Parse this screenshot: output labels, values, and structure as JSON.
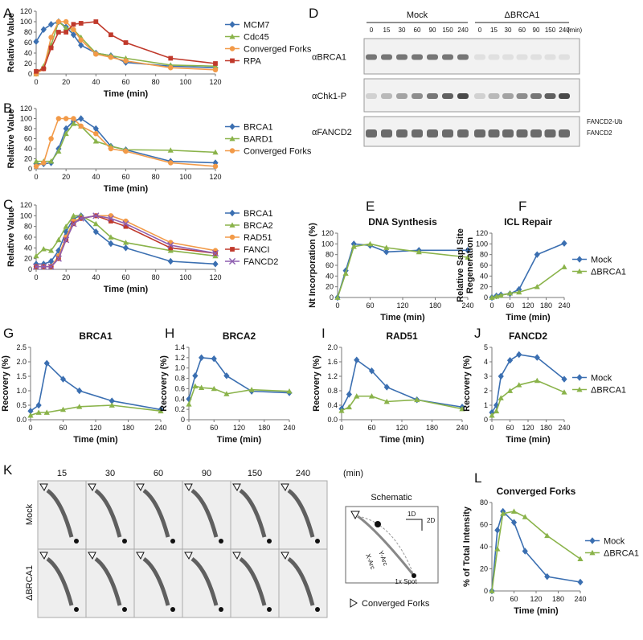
{
  "panel_labels": [
    "A",
    "B",
    "C",
    "D",
    "E",
    "F",
    "G",
    "H",
    "I",
    "J",
    "K",
    "L"
  ],
  "blots": {
    "conditions": [
      "Mock",
      "ΔBRCA1"
    ],
    "lanes": [
      "0",
      "15",
      "30",
      "60",
      "90",
      "150",
      "240"
    ],
    "unit": "(min)",
    "antibodies": [
      "αBRCA1",
      "αChk1-P",
      "αFANCD2"
    ],
    "band_labels": [
      "FANCD2-Ub",
      "FANCD2"
    ]
  },
  "gels": {
    "times": [
      "15",
      "30",
      "60",
      "90",
      "150",
      "240"
    ],
    "unit": "(min)",
    "rows": [
      "Mock",
      "ΔBRCA1"
    ],
    "schematic": {
      "title": "Schematic",
      "axis_1d": "1D",
      "axis_2d": "2D",
      "arc_labels": [
        "X-Arc",
        "Y-Arc"
      ],
      "spot": "1x Spot"
    },
    "legend": "Converged Forks"
  },
  "chart_data": [
    {
      "type": "line",
      "x_label": "Time (min)",
      "y_label": "Relative Value",
      "x": [
        0,
        5,
        10,
        15,
        20,
        25,
        30,
        40,
        50,
        60,
        90,
        120
      ],
      "xlim": [
        0,
        120
      ],
      "xticks": [
        0,
        20,
        40,
        60,
        80,
        100,
        120
      ],
      "ylim": [
        0,
        120
      ],
      "yticks": [
        0,
        20,
        40,
        60,
        80,
        100,
        120
      ],
      "legend": "right",
      "series": [
        {
          "name": "MCM7",
          "color": "#3b6fb1",
          "marker": "diamond",
          "values": [
            62,
            85,
            95,
            100,
            90,
            75,
            55,
            40,
            35,
            22,
            15,
            12
          ]
        },
        {
          "name": "Cdc45",
          "color": "#8ab34a",
          "marker": "triangle",
          "values": [
            0,
            15,
            55,
            100,
            88,
            85,
            70,
            40,
            35,
            30,
            17,
            15
          ]
        },
        {
          "name": "Converged Forks",
          "color": "#f29a48",
          "marker": "circle",
          "values": [
            0,
            10,
            70,
            100,
            100,
            85,
            65,
            38,
            32,
            25,
            12,
            8
          ]
        },
        {
          "name": "RPA",
          "color": "#c0392b",
          "marker": "square",
          "values": [
            5,
            10,
            50,
            80,
            80,
            95,
            97,
            100,
            75,
            60,
            30,
            20
          ]
        }
      ]
    },
    {
      "type": "line",
      "x_label": "Time (min)",
      "y_label": "Relative Value",
      "x": [
        0,
        5,
        10,
        15,
        20,
        25,
        30,
        40,
        50,
        60,
        90,
        120
      ],
      "xlim": [
        0,
        120
      ],
      "xticks": [
        0,
        20,
        40,
        60,
        80,
        100,
        120
      ],
      "ylim": [
        0,
        120
      ],
      "yticks": [
        0,
        20,
        40,
        60,
        80,
        100,
        120
      ],
      "legend": "right",
      "series": [
        {
          "name": "BRCA1",
          "color": "#3b6fb1",
          "marker": "diamond",
          "values": [
            10,
            10,
            12,
            40,
            80,
            95,
            100,
            80,
            45,
            38,
            15,
            12
          ]
        },
        {
          "name": "BARD1",
          "color": "#8ab34a",
          "marker": "triangle",
          "values": [
            15,
            15,
            15,
            35,
            70,
            90,
            85,
            55,
            45,
            38,
            37,
            33
          ]
        },
        {
          "name": "Converged Forks",
          "color": "#f29a48",
          "marker": "circle",
          "values": [
            5,
            12,
            60,
            100,
            100,
            100,
            85,
            70,
            40,
            35,
            12,
            5
          ]
        }
      ]
    },
    {
      "type": "line",
      "x_label": "Time (min)",
      "y_label": "Relative Value",
      "x": [
        0,
        5,
        10,
        15,
        20,
        25,
        30,
        40,
        50,
        60,
        90,
        120
      ],
      "xlim": [
        0,
        120
      ],
      "xticks": [
        0,
        20,
        40,
        60,
        80,
        100,
        120
      ],
      "ylim": [
        0,
        120
      ],
      "yticks": [
        0,
        20,
        40,
        60,
        80,
        100,
        120
      ],
      "legend": "right",
      "series": [
        {
          "name": "BRCA1",
          "color": "#3b6fb1",
          "marker": "diamond",
          "values": [
            10,
            10,
            15,
            35,
            70,
            95,
            100,
            70,
            48,
            40,
            15,
            10
          ]
        },
        {
          "name": "BRCA2",
          "color": "#8ab34a",
          "marker": "triangle",
          "values": [
            25,
            38,
            35,
            55,
            80,
            100,
            100,
            85,
            60,
            50,
            35,
            25
          ]
        },
        {
          "name": "RAD51",
          "color": "#f29a48",
          "marker": "circle",
          "values": [
            5,
            5,
            5,
            25,
            60,
            90,
            95,
            100,
            100,
            90,
            50,
            35
          ]
        },
        {
          "name": "FANCI",
          "color": "#c0392b",
          "marker": "square",
          "values": [
            5,
            5,
            5,
            20,
            55,
            85,
            95,
            100,
            90,
            80,
            40,
            30
          ]
        },
        {
          "name": "FANCD2",
          "color": "#8e5fb0",
          "marker": "x",
          "values": [
            5,
            5,
            5,
            20,
            55,
            85,
            95,
            100,
            95,
            85,
            45,
            30
          ]
        }
      ]
    },
    {
      "type": "line",
      "title": "DNA Synthesis",
      "x_label": "Time (min)",
      "y_label": "Nt Incorporation (%)",
      "x": [
        0,
        15,
        30,
        60,
        90,
        150,
        240
      ],
      "xlim": [
        0,
        240
      ],
      "xticks": [
        0,
        60,
        120,
        180,
        240
      ],
      "ylim": [
        0,
        120
      ],
      "yticks": [
        0,
        20,
        40,
        60,
        80,
        100,
        120
      ],
      "series": [
        {
          "name": "Mock",
          "color": "#3b6fb1",
          "marker": "diamond",
          "values": [
            0,
            50,
            100,
            97,
            85,
            88,
            88
          ]
        },
        {
          "name": "ΔBRCA1",
          "color": "#8ab34a",
          "marker": "triangle",
          "values": [
            0,
            45,
            95,
            100,
            93,
            85,
            75
          ]
        }
      ]
    },
    {
      "type": "line",
      "title": "ICL Repair",
      "x_label": "Time (min)",
      "y_label": "Relative SapI Site Regeneration",
      "x": [
        0,
        15,
        30,
        60,
        90,
        150,
        240
      ],
      "xlim": [
        0,
        240
      ],
      "xticks": [
        0,
        60,
        120,
        180,
        240
      ],
      "ylim": [
        0,
        120
      ],
      "yticks": [
        0,
        20,
        40,
        60,
        80,
        100,
        120
      ],
      "legend": "right",
      "series": [
        {
          "name": "Mock",
          "color": "#3b6fb1",
          "marker": "diamond",
          "values": [
            0,
            3,
            5,
            7,
            15,
            80,
            101
          ]
        },
        {
          "name": "ΔBRCA1",
          "color": "#8ab34a",
          "marker": "triangle",
          "values": [
            0,
            2,
            4,
            8,
            10,
            20,
            57
          ]
        }
      ]
    },
    {
      "type": "line",
      "title": "BRCA1",
      "x_label": "Time (min)",
      "y_label": "Recovery (%)",
      "x": [
        0,
        15,
        30,
        60,
        90,
        150,
        240
      ],
      "xlim": [
        0,
        240
      ],
      "xticks": [
        0,
        60,
        120,
        180,
        240
      ],
      "ylim": [
        0,
        2.5
      ],
      "yticks": [
        {
          "value": 0,
          "label": "0.0"
        },
        0.5,
        {
          "value": 1,
          "label": "1.0"
        },
        1.5,
        {
          "value": 2,
          "label": "2.0"
        },
        2.5
      ],
      "series": [
        {
          "name": "Mock",
          "color": "#3b6fb1",
          "marker": "diamond",
          "values": [
            0.3,
            0.5,
            1.95,
            1.4,
            1.0,
            0.65,
            0.35
          ]
        },
        {
          "name": "ΔBRCA1",
          "color": "#8ab34a",
          "marker": "triangle",
          "values": [
            0.15,
            0.25,
            0.25,
            0.35,
            0.45,
            0.5,
            0.3
          ]
        }
      ]
    },
    {
      "type": "line",
      "title": "BRCA2",
      "x_label": "Time (min)",
      "y_label": "Recovery (%)",
      "x": [
        0,
        15,
        30,
        60,
        90,
        150,
        240
      ],
      "xlim": [
        0,
        240
      ],
      "xticks": [
        0,
        60,
        120,
        180,
        240
      ],
      "ylim": [
        0,
        1.4
      ],
      "yticks": [
        0,
        0.2,
        0.4,
        0.6,
        0.8,
        {
          "value": 1,
          "label": "1.0"
        },
        1.2,
        1.4
      ],
      "series": [
        {
          "name": "Mock",
          "color": "#3b6fb1",
          "marker": "diamond",
          "values": [
            0.4,
            0.85,
            1.2,
            1.18,
            0.85,
            0.55,
            0.52
          ]
        },
        {
          "name": "ΔBRCA1",
          "color": "#8ab34a",
          "marker": "triangle",
          "values": [
            0.3,
            0.65,
            0.62,
            0.6,
            0.5,
            0.58,
            0.55
          ]
        }
      ]
    },
    {
      "type": "line",
      "title": "RAD51",
      "x_label": "Time (min)",
      "y_label": "Recovery (%)",
      "x": [
        0,
        15,
        30,
        60,
        90,
        150,
        240
      ],
      "xlim": [
        0,
        240
      ],
      "xticks": [
        0,
        60,
        120,
        180,
        240
      ],
      "ylim": [
        0,
        2
      ],
      "yticks": [
        {
          "value": 0,
          "label": "0.0"
        },
        0.4,
        0.8,
        1.2,
        1.6,
        {
          "value": 2,
          "label": "2.0"
        }
      ],
      "series": [
        {
          "name": "Mock",
          "color": "#3b6fb1",
          "marker": "diamond",
          "values": [
            0.3,
            0.7,
            1.65,
            1.35,
            0.9,
            0.55,
            0.35
          ]
        },
        {
          "name": "ΔBRCA1",
          "color": "#8ab34a",
          "marker": "triangle",
          "values": [
            0.25,
            0.35,
            0.65,
            0.65,
            0.5,
            0.55,
            0.3
          ]
        }
      ]
    },
    {
      "type": "line",
      "title": "FANCD2",
      "x_label": "Time (min)",
      "y_label": "Recovery (%)",
      "x": [
        0,
        15,
        30,
        60,
        90,
        150,
        240
      ],
      "xlim": [
        0,
        240
      ],
      "xticks": [
        0,
        60,
        120,
        180,
        240
      ],
      "ylim": [
        0,
        5
      ],
      "yticks": [
        0,
        1,
        2,
        3,
        4,
        5
      ],
      "legend": "right",
      "series": [
        {
          "name": "Mock",
          "color": "#3b6fb1",
          "marker": "diamond",
          "values": [
            0.5,
            1,
            3,
            4.1,
            4.5,
            4.3,
            2.8
          ]
        },
        {
          "name": "ΔBRCA1",
          "color": "#8ab34a",
          "marker": "triangle",
          "values": [
            0.3,
            0.6,
            1.5,
            2.0,
            2.4,
            2.7,
            1.9
          ]
        }
      ]
    },
    {
      "type": "line",
      "title": "Converged Forks",
      "x_label": "Time (min)",
      "y_label": "% of Total Intensity",
      "x": [
        0,
        15,
        30,
        60,
        90,
        150,
        240
      ],
      "xlim": [
        0,
        240
      ],
      "xticks": [
        0,
        60,
        120,
        180,
        240
      ],
      "ylim": [
        0,
        80
      ],
      "yticks": [
        0,
        20,
        40,
        60,
        80
      ],
      "legend": "right",
      "series": [
        {
          "name": "Mock",
          "color": "#3b6fb1",
          "marker": "diamond",
          "values": [
            0,
            55,
            72,
            62,
            36,
            13,
            8
          ]
        },
        {
          "name": "ΔBRCA1",
          "color": "#8ab34a",
          "marker": "triangle",
          "values": [
            0,
            38,
            70,
            72,
            67,
            50,
            29
          ]
        }
      ]
    }
  ]
}
